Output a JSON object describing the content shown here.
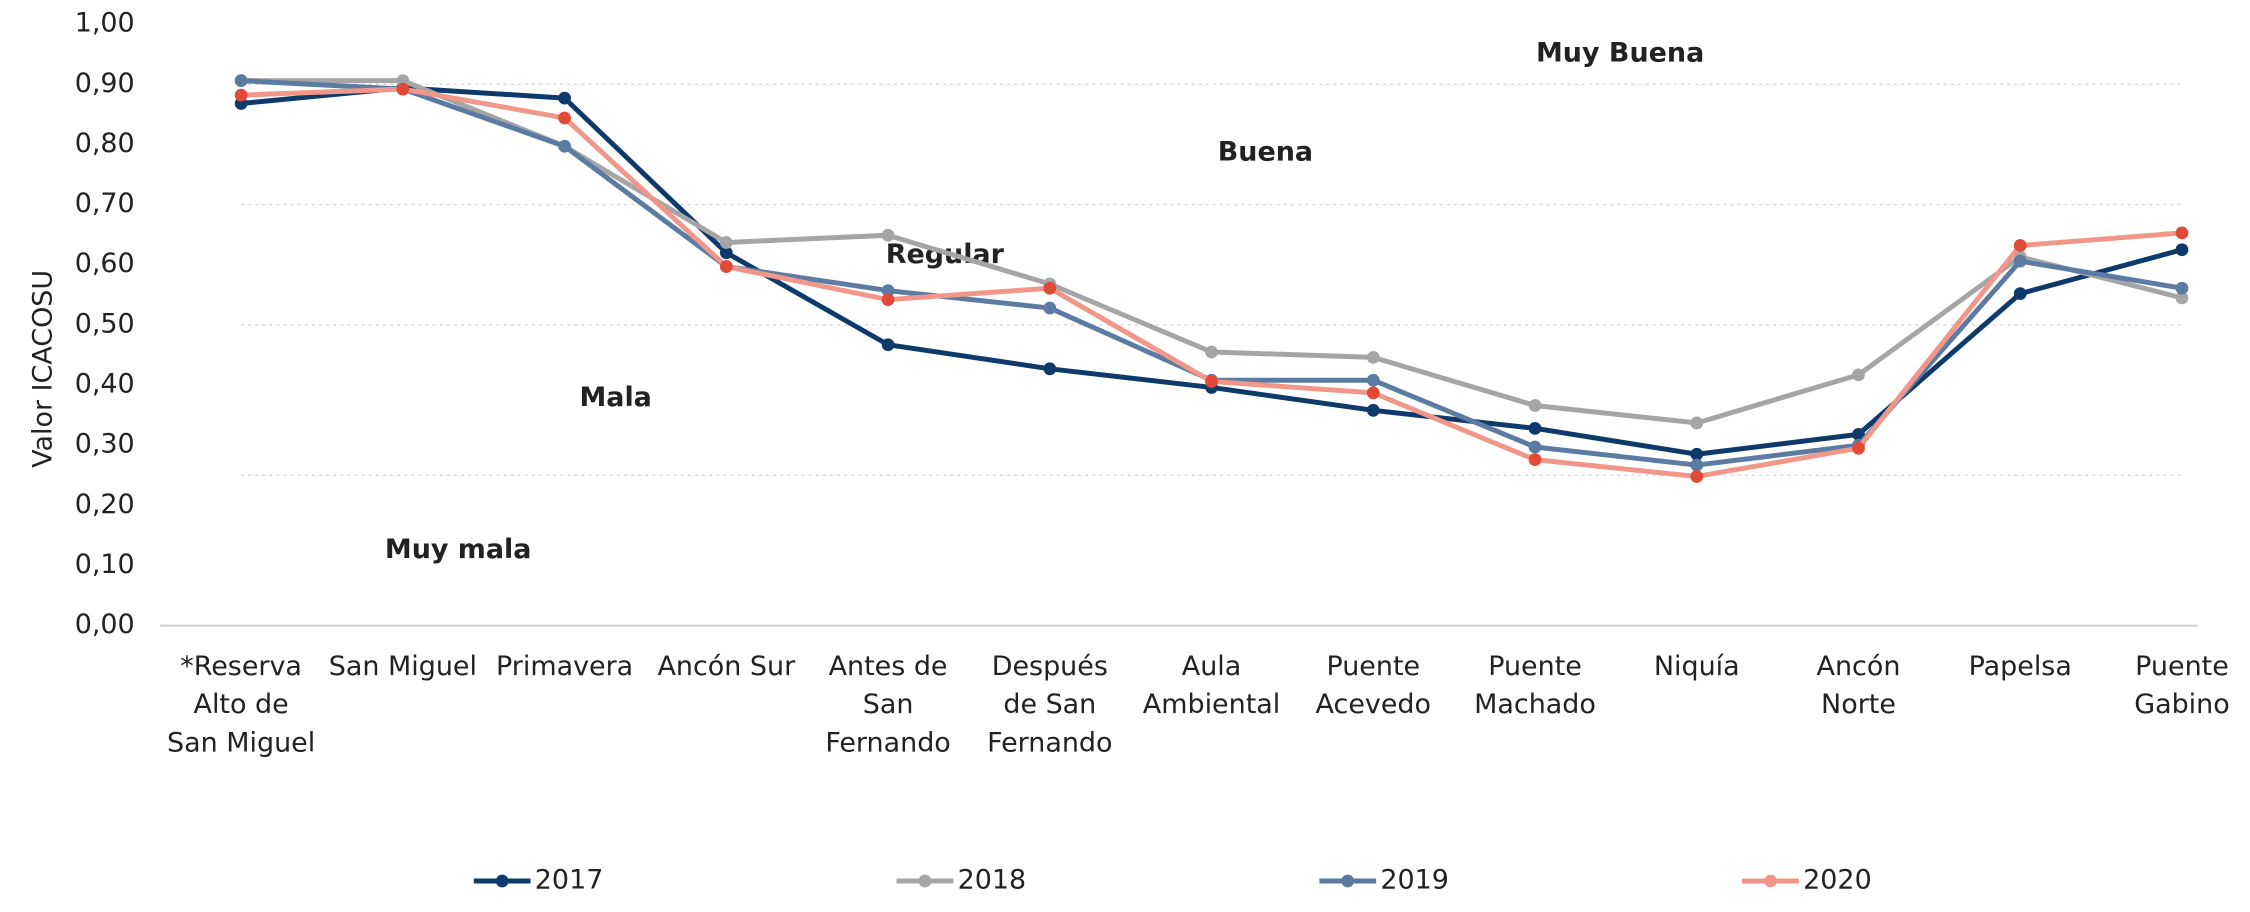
{
  "chart_data": {
    "type": "line",
    "ylabel": "Valor ICACOSU",
    "categories": [
      "*Reserva\nAlto de\nSan Miguel",
      "San Miguel",
      "Primavera",
      "Ancón Sur",
      "Antes de\nSan\nFernando",
      "Después\nde San\nFernando",
      "Aula\nAmbiental",
      "Puente\nAcevedo",
      "Puente\nMachado",
      "Niquía",
      "Ancón\nNorte",
      "Papelsa",
      "Puente\nGabino"
    ],
    "series": [
      {
        "name": "2017",
        "color": "#0e3a6b",
        "values": [
          0.868,
          0.894,
          0.877,
          0.62,
          0.467,
          0.427,
          0.396,
          0.358,
          0.328,
          0.285,
          0.318,
          0.552,
          0.625
        ]
      },
      {
        "name": "2018",
        "color": "#a5a5a5",
        "values": [
          0.906,
          0.906,
          0.797,
          0.637,
          0.649,
          0.568,
          0.455,
          0.446,
          0.366,
          0.337,
          0.417,
          0.613,
          0.545
        ]
      },
      {
        "name": "2019",
        "color": "#5b7ba3",
        "values": [
          0.906,
          0.892,
          0.797,
          0.597,
          0.557,
          0.528,
          0.408,
          0.408,
          0.297,
          0.267,
          0.3,
          0.606,
          0.561
        ]
      },
      {
        "name": "2020",
        "color": "#f0978a",
        "values": [
          0.882,
          0.892,
          0.844,
          0.597,
          0.542,
          0.561,
          0.406,
          0.387,
          0.276,
          0.248,
          0.295,
          0.632,
          0.653
        ]
      }
    ],
    "ylim": [
      0,
      1
    ],
    "yticks": [
      {
        "value": 0,
        "label": "0,00"
      },
      {
        "value": 0.1,
        "label": "0,10"
      },
      {
        "value": 0.2,
        "label": "0,20"
      },
      {
        "value": 0.3,
        "label": "0,30"
      },
      {
        "value": 0.4,
        "label": "0,40"
      },
      {
        "value": 0.5,
        "label": "0,50"
      },
      {
        "value": 0.6,
        "label": "0,60"
      },
      {
        "value": 0.7,
        "label": "0,70"
      },
      {
        "value": 0.8,
        "label": "0,80"
      },
      {
        "value": 0.9,
        "label": "0,90"
      },
      {
        "value": 1,
        "label": "1,00"
      }
    ],
    "thresholds": [
      0.9,
      0.7,
      0.5,
      0.25
    ],
    "annotations": [
      "Muy Buena",
      "Buena",
      "Regular",
      "Mala",
      "Muy mala"
    ],
    "legend": "bottom"
  }
}
